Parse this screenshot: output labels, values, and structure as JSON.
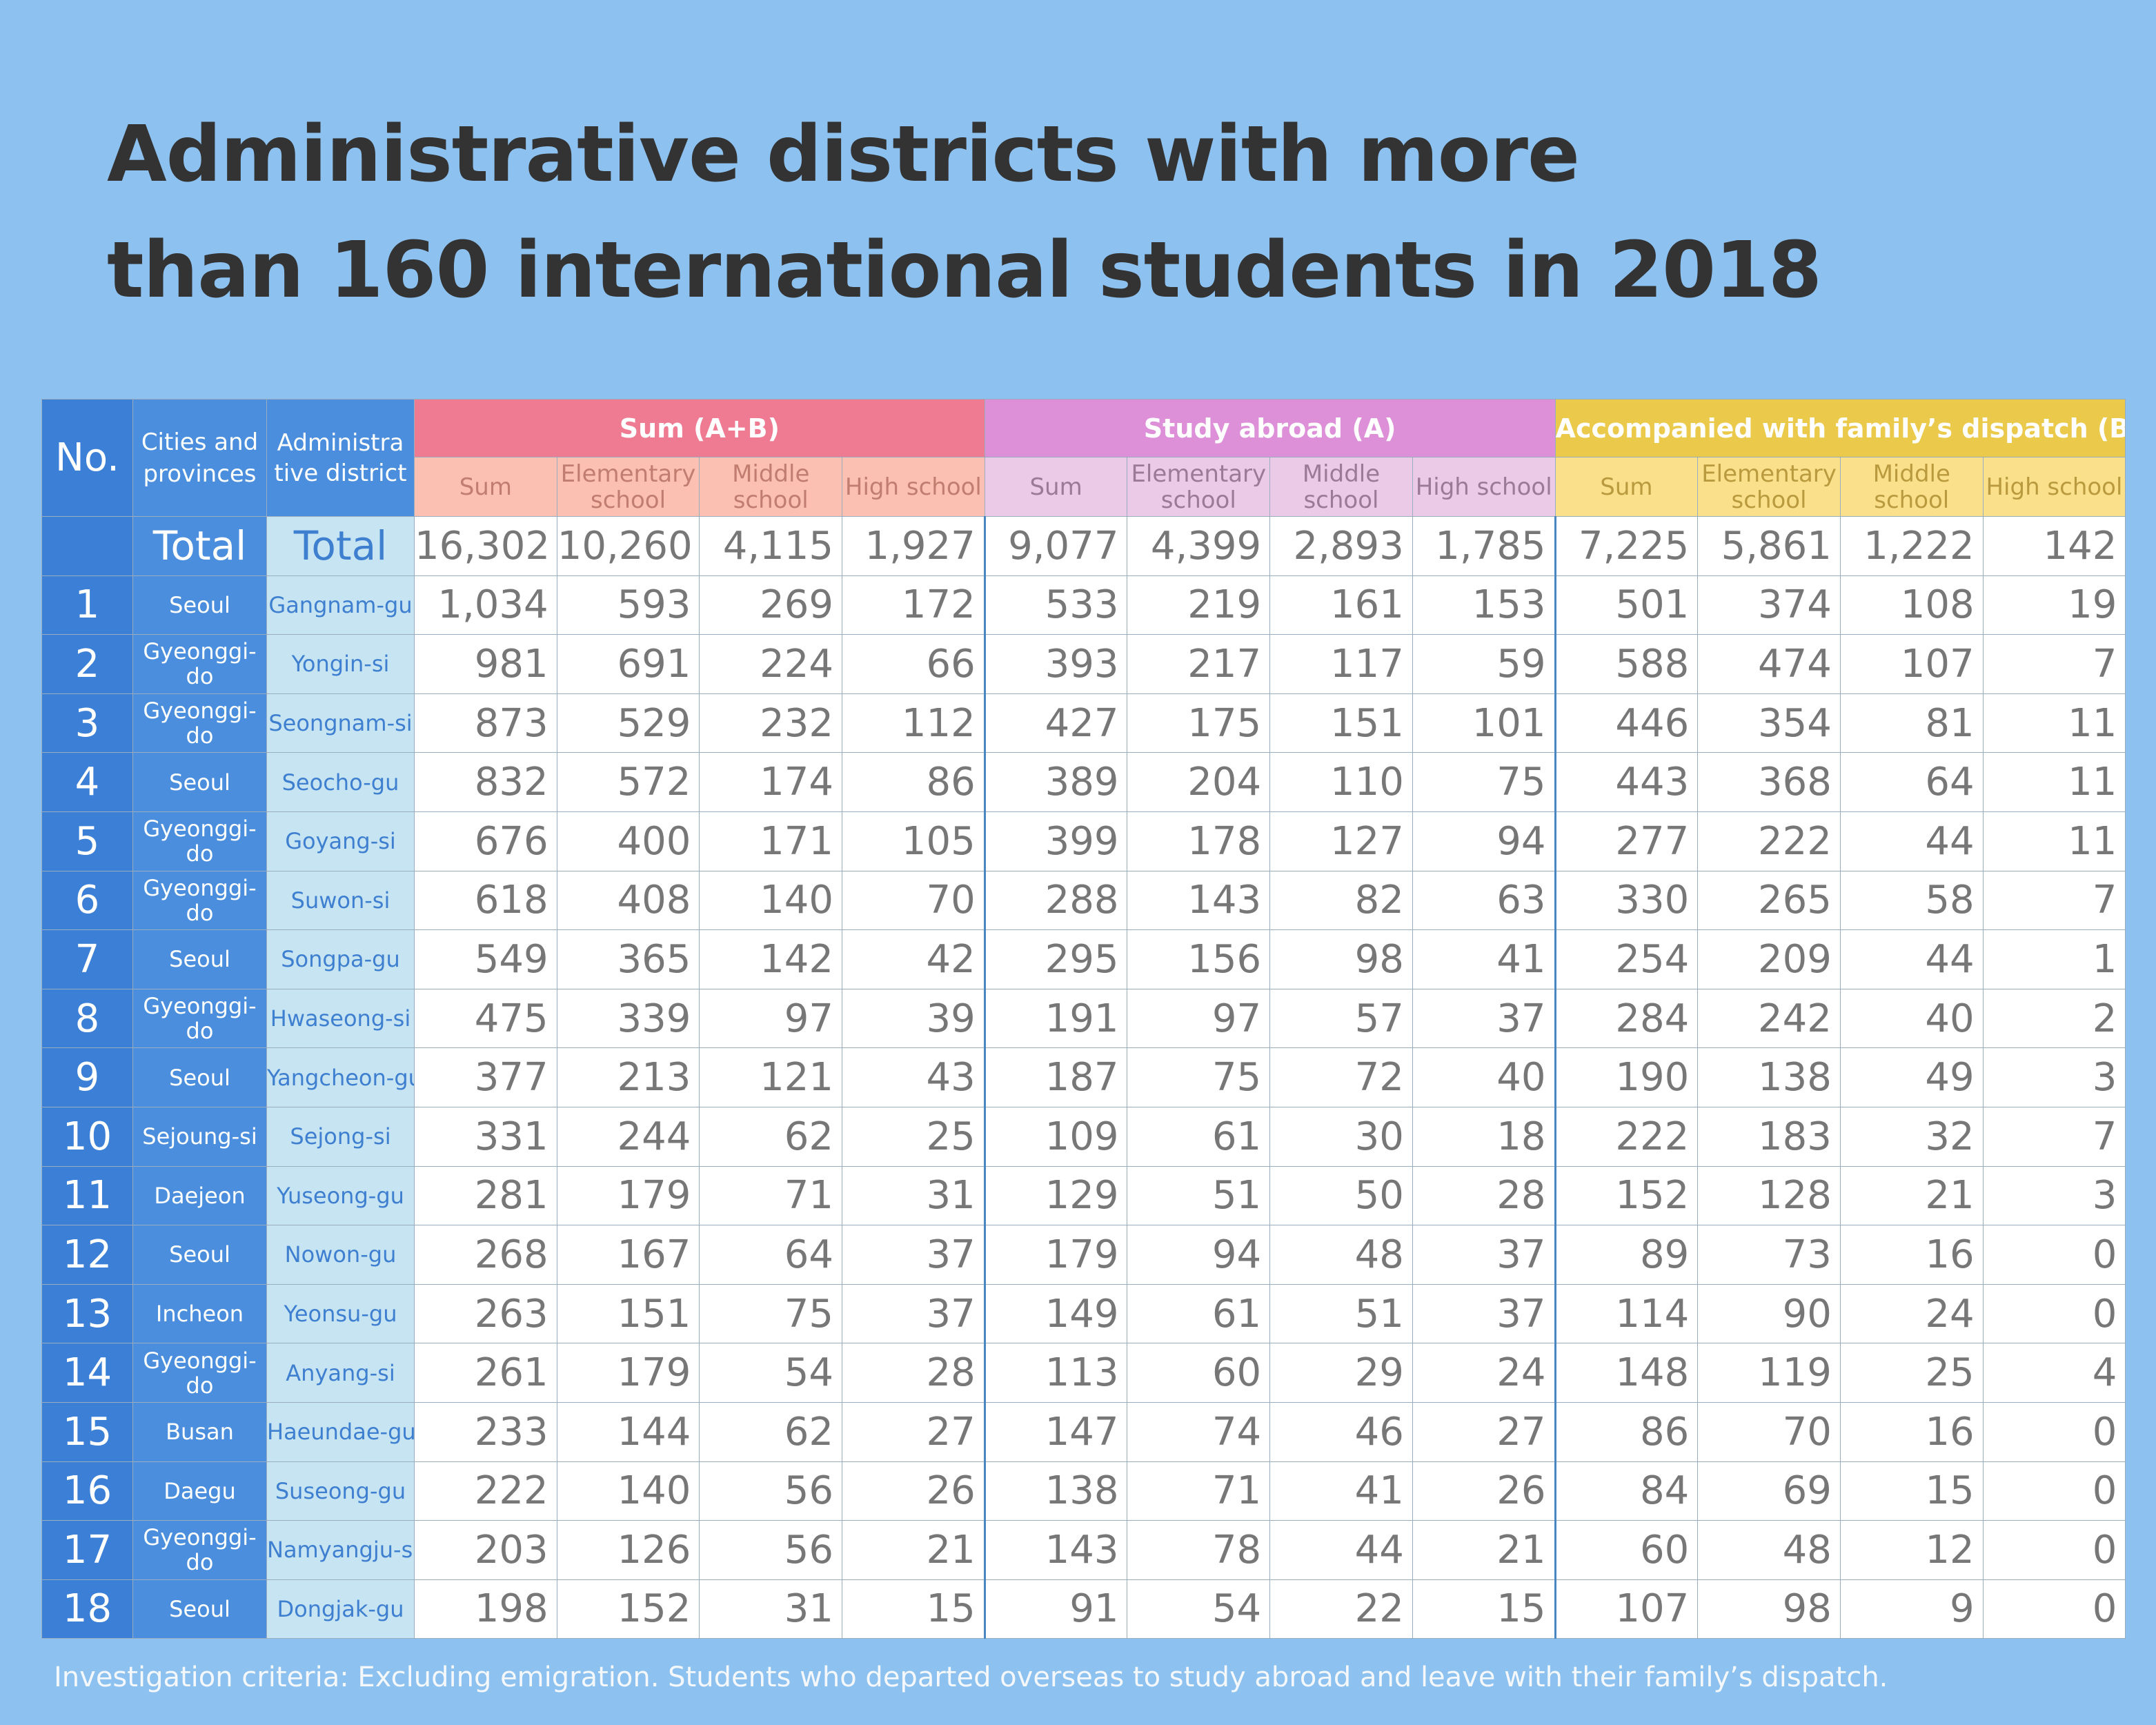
{
  "title_line1": "Administrative districts with more",
  "title_line2": "than 160 international students in 2018",
  "headers": {
    "no": "No.",
    "cities": "Cities and provinces",
    "district": "Administra tive district",
    "groups": [
      "Sum (A+B)",
      "Study abroad (A)",
      "Accompanied with family’s dispatch (B)"
    ],
    "sub": [
      "Sum",
      "Elementary school",
      "Middle school",
      "High school"
    ]
  },
  "total": {
    "city": "Total",
    "district": "Total",
    "values": [
      "16,302",
      "10,260",
      "4,115",
      "1,927",
      "9,077",
      "4,399",
      "2,893",
      "1,785",
      "7,225",
      "5,861",
      "1,222",
      "142"
    ]
  },
  "rows": [
    {
      "no": "1",
      "city": "Seoul",
      "district": "Gangnam-gu",
      "values": [
        "1,034",
        "593",
        "269",
        "172",
        "533",
        "219",
        "161",
        "153",
        "501",
        "374",
        "108",
        "19"
      ]
    },
    {
      "no": "2",
      "city": "Gyeonggi-do",
      "district": "Yongin-si",
      "values": [
        "981",
        "691",
        "224",
        "66",
        "393",
        "217",
        "117",
        "59",
        "588",
        "474",
        "107",
        "7"
      ]
    },
    {
      "no": "3",
      "city": "Gyeonggi-do",
      "district": "Seongnam-si",
      "values": [
        "873",
        "529",
        "232",
        "112",
        "427",
        "175",
        "151",
        "101",
        "446",
        "354",
        "81",
        "11"
      ]
    },
    {
      "no": "4",
      "city": "Seoul",
      "district": "Seocho-gu",
      "values": [
        "832",
        "572",
        "174",
        "86",
        "389",
        "204",
        "110",
        "75",
        "443",
        "368",
        "64",
        "11"
      ]
    },
    {
      "no": "5",
      "city": "Gyeonggi-do",
      "district": "Goyang-si",
      "values": [
        "676",
        "400",
        "171",
        "105",
        "399",
        "178",
        "127",
        "94",
        "277",
        "222",
        "44",
        "11"
      ]
    },
    {
      "no": "6",
      "city": "Gyeonggi-do",
      "district": "Suwon-si",
      "values": [
        "618",
        "408",
        "140",
        "70",
        "288",
        "143",
        "82",
        "63",
        "330",
        "265",
        "58",
        "7"
      ]
    },
    {
      "no": "7",
      "city": "Seoul",
      "district": "Songpa-gu",
      "values": [
        "549",
        "365",
        "142",
        "42",
        "295",
        "156",
        "98",
        "41",
        "254",
        "209",
        "44",
        "1"
      ]
    },
    {
      "no": "8",
      "city": "Gyeonggi-do",
      "district": "Hwaseong-si",
      "values": [
        "475",
        "339",
        "97",
        "39",
        "191",
        "97",
        "57",
        "37",
        "284",
        "242",
        "40",
        "2"
      ]
    },
    {
      "no": "9",
      "city": "Seoul",
      "district": "Yangcheon-gu",
      "values": [
        "377",
        "213",
        "121",
        "43",
        "187",
        "75",
        "72",
        "40",
        "190",
        "138",
        "49",
        "3"
      ]
    },
    {
      "no": "10",
      "city": "Sejoung-si",
      "district": "Sejong-si",
      "values": [
        "331",
        "244",
        "62",
        "25",
        "109",
        "61",
        "30",
        "18",
        "222",
        "183",
        "32",
        "7"
      ]
    },
    {
      "no": "11",
      "city": "Daejeon",
      "district": "Yuseong-gu",
      "values": [
        "281",
        "179",
        "71",
        "31",
        "129",
        "51",
        "50",
        "28",
        "152",
        "128",
        "21",
        "3"
      ]
    },
    {
      "no": "12",
      "city": "Seoul",
      "district": "Nowon-gu",
      "values": [
        "268",
        "167",
        "64",
        "37",
        "179",
        "94",
        "48",
        "37",
        "89",
        "73",
        "16",
        "0"
      ]
    },
    {
      "no": "13",
      "city": "Incheon",
      "district": "Yeonsu-gu",
      "values": [
        "263",
        "151",
        "75",
        "37",
        "149",
        "61",
        "51",
        "37",
        "114",
        "90",
        "24",
        "0"
      ]
    },
    {
      "no": "14",
      "city": "Gyeonggi-do",
      "district": "Anyang-si",
      "values": [
        "261",
        "179",
        "54",
        "28",
        "113",
        "60",
        "29",
        "24",
        "148",
        "119",
        "25",
        "4"
      ]
    },
    {
      "no": "15",
      "city": "Busan",
      "district": "Haeundae-gu",
      "values": [
        "233",
        "144",
        "62",
        "27",
        "147",
        "74",
        "46",
        "27",
        "86",
        "70",
        "16",
        "0"
      ]
    },
    {
      "no": "16",
      "city": "Daegu",
      "district": "Suseong-gu",
      "values": [
        "222",
        "140",
        "56",
        "26",
        "138",
        "71",
        "41",
        "26",
        "84",
        "69",
        "15",
        "0"
      ]
    },
    {
      "no": "17",
      "city": "Gyeonggi-do",
      "district": "Namyangju-si",
      "values": [
        "203",
        "126",
        "56",
        "21",
        "143",
        "78",
        "44",
        "21",
        "60",
        "48",
        "12",
        "0"
      ]
    },
    {
      "no": "18",
      "city": "Seoul",
      "district": "Dongjak-gu",
      "values": [
        "198",
        "152",
        "31",
        "15",
        "91",
        "54",
        "22",
        "15",
        "107",
        "98",
        "9",
        "0"
      ]
    }
  ],
  "footnote": "Investigation criteria: Excluding emigration. Students who departed overseas to study abroad and leave with their family’s dispatch."
}
